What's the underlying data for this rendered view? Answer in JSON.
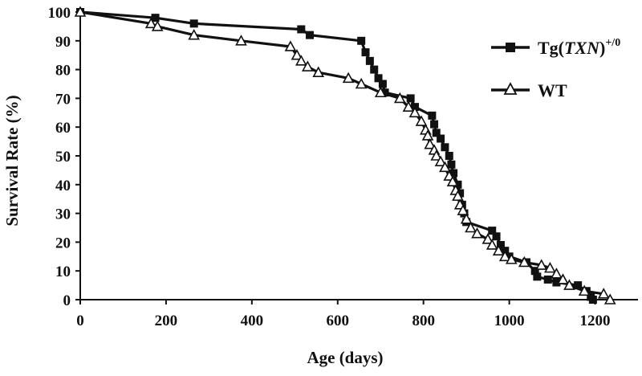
{
  "chart_data": {
    "type": "line",
    "xlabel": "Age (days)",
    "ylabel": "Survival Rate (%)",
    "xlim": [
      0,
      1300
    ],
    "ylim": [
      0,
      100
    ],
    "xticks": [
      "0",
      "200",
      "400",
      "600",
      "800",
      "1000",
      "1200"
    ],
    "yticks": [
      "0",
      "10",
      "20",
      "30",
      "40",
      "50",
      "60",
      "70",
      "80",
      "90",
      "100"
    ],
    "grid": false,
    "legend_position": "top-right",
    "series": [
      {
        "legend_main": "Tg(",
        "legend_italic": "TXN",
        "legend_close": ")",
        "legend_sup": "+/0",
        "marker": "filled-square",
        "color": "#111111",
        "points": [
          [
            0,
            100
          ],
          [
            175,
            98
          ],
          [
            265,
            96
          ],
          [
            515,
            94
          ],
          [
            535,
            92
          ],
          [
            655,
            90
          ],
          [
            665,
            86
          ],
          [
            675,
            83
          ],
          [
            685,
            80
          ],
          [
            695,
            77
          ],
          [
            705,
            75
          ],
          [
            710,
            72
          ],
          [
            770,
            70
          ],
          [
            780,
            67
          ],
          [
            820,
            64
          ],
          [
            825,
            61
          ],
          [
            830,
            58
          ],
          [
            840,
            56
          ],
          [
            850,
            53
          ],
          [
            860,
            50
          ],
          [
            865,
            47
          ],
          [
            870,
            44
          ],
          [
            880,
            40
          ],
          [
            885,
            37
          ],
          [
            890,
            33
          ],
          [
            895,
            30
          ],
          [
            900,
            27
          ],
          [
            960,
            24
          ],
          [
            970,
            22
          ],
          [
            980,
            19
          ],
          [
            990,
            17
          ],
          [
            1000,
            15
          ],
          [
            1040,
            13
          ],
          [
            1060,
            10
          ],
          [
            1065,
            8
          ],
          [
            1090,
            7
          ],
          [
            1110,
            6
          ],
          [
            1160,
            5
          ],
          [
            1180,
            3
          ],
          [
            1190,
            1
          ],
          [
            1195,
            0
          ]
        ]
      },
      {
        "legend_main": "WT",
        "marker": "open-triangle",
        "color": "#111111",
        "points": [
          [
            0,
            100
          ],
          [
            165,
            96
          ],
          [
            180,
            95
          ],
          [
            265,
            92
          ],
          [
            375,
            90
          ],
          [
            490,
            88
          ],
          [
            505,
            85
          ],
          [
            515,
            83
          ],
          [
            530,
            81
          ],
          [
            555,
            79
          ],
          [
            625,
            77
          ],
          [
            655,
            75
          ],
          [
            700,
            72
          ],
          [
            745,
            70
          ],
          [
            765,
            67
          ],
          [
            780,
            65
          ],
          [
            795,
            62
          ],
          [
            805,
            59
          ],
          [
            810,
            57
          ],
          [
            815,
            54
          ],
          [
            825,
            52
          ],
          [
            830,
            50
          ],
          [
            840,
            48
          ],
          [
            850,
            46
          ],
          [
            860,
            43
          ],
          [
            868,
            41
          ],
          [
            875,
            38
          ],
          [
            880,
            36
          ],
          [
            885,
            33
          ],
          [
            892,
            31
          ],
          [
            900,
            28
          ],
          [
            910,
            25
          ],
          [
            925,
            23
          ],
          [
            950,
            21
          ],
          [
            960,
            19
          ],
          [
            975,
            17
          ],
          [
            990,
            15
          ],
          [
            1005,
            14
          ],
          [
            1035,
            13
          ],
          [
            1075,
            12
          ],
          [
            1095,
            11
          ],
          [
            1110,
            9
          ],
          [
            1125,
            7
          ],
          [
            1140,
            5
          ],
          [
            1175,
            3
          ],
          [
            1220,
            2
          ],
          [
            1235,
            0
          ]
        ]
      }
    ]
  }
}
